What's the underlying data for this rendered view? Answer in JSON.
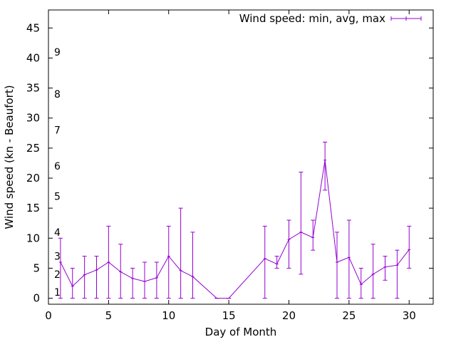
{
  "chart_data": {
    "type": "line",
    "xlabel": "Day of Month",
    "ylabel": "Wind speed (kn - Beaufort)",
    "xlim": [
      0,
      32
    ],
    "ylim": [
      -1,
      48
    ],
    "xticks": [
      0,
      5,
      10,
      15,
      20,
      25,
      30
    ],
    "yticks": [
      0,
      5,
      10,
      15,
      20,
      25,
      30,
      35,
      40,
      45
    ],
    "grid": false,
    "legend_position": "top-right",
    "colors": {
      "series": "#9400d3",
      "axis": "#000000"
    },
    "beaufort_labels": [
      {
        "label": "1",
        "y": 1
      },
      {
        "label": "2",
        "y": 4
      },
      {
        "label": "3",
        "y": 7
      },
      {
        "label": "4",
        "y": 11
      },
      {
        "label": "5",
        "y": 17
      },
      {
        "label": "6",
        "y": 22
      },
      {
        "label": "7",
        "y": 28
      },
      {
        "label": "8",
        "y": 34
      },
      {
        "label": "9",
        "y": 41
      }
    ],
    "series": [
      {
        "name": "Wind speed: min, avg, max",
        "points": [
          {
            "x": 1,
            "avg": 6,
            "min": 0,
            "max": 10
          },
          {
            "x": 2,
            "avg": 2,
            "min": 0,
            "max": 5
          },
          {
            "x": 3,
            "avg": 3.9,
            "min": 0,
            "max": 7
          },
          {
            "x": 4,
            "avg": 4.7,
            "min": 0,
            "max": 7
          },
          {
            "x": 5,
            "avg": 6,
            "min": 0,
            "max": 12
          },
          {
            "x": 6,
            "avg": 4.4,
            "min": 0,
            "max": 9
          },
          {
            "x": 7,
            "avg": 3.3,
            "min": 0,
            "max": 5
          },
          {
            "x": 8,
            "avg": 2.8,
            "min": 0,
            "max": 6
          },
          {
            "x": 9,
            "avg": 3.4,
            "min": 0,
            "max": 6
          },
          {
            "x": 10,
            "avg": 7,
            "min": 0,
            "max": 12
          },
          {
            "x": 11,
            "avg": 4.6,
            "min": 0,
            "max": 15
          },
          {
            "x": 12,
            "avg": 3.6,
            "min": 0,
            "max": 11
          },
          {
            "x": 14,
            "avg": 0,
            "min": 0,
            "max": 0
          },
          {
            "x": 15,
            "avg": 0,
            "min": 0,
            "max": 0
          },
          {
            "x": 18,
            "avg": 6.6,
            "min": 0,
            "max": 12
          },
          {
            "x": 19,
            "avg": 5.7,
            "min": 5,
            "max": 7
          },
          {
            "x": 20,
            "avg": 9.8,
            "min": 5,
            "max": 13
          },
          {
            "x": 21,
            "avg": 11,
            "min": 4,
            "max": 21
          },
          {
            "x": 22,
            "avg": 10.1,
            "min": 8,
            "max": 13
          },
          {
            "x": 23,
            "avg": 23,
            "min": 18,
            "max": 26
          },
          {
            "x": 24,
            "avg": 6,
            "min": 0,
            "max": 11
          },
          {
            "x": 25,
            "avg": 6.8,
            "min": 0,
            "max": 13
          },
          {
            "x": 26,
            "avg": 2.3,
            "min": 0,
            "max": 5
          },
          {
            "x": 27,
            "avg": 4,
            "min": 0,
            "max": 9
          },
          {
            "x": 28,
            "avg": 5.2,
            "min": 3,
            "max": 7
          },
          {
            "x": 29,
            "avg": 5.5,
            "min": 0,
            "max": 8
          },
          {
            "x": 30,
            "avg": 8.1,
            "min": 5,
            "max": 12
          }
        ]
      }
    ]
  }
}
